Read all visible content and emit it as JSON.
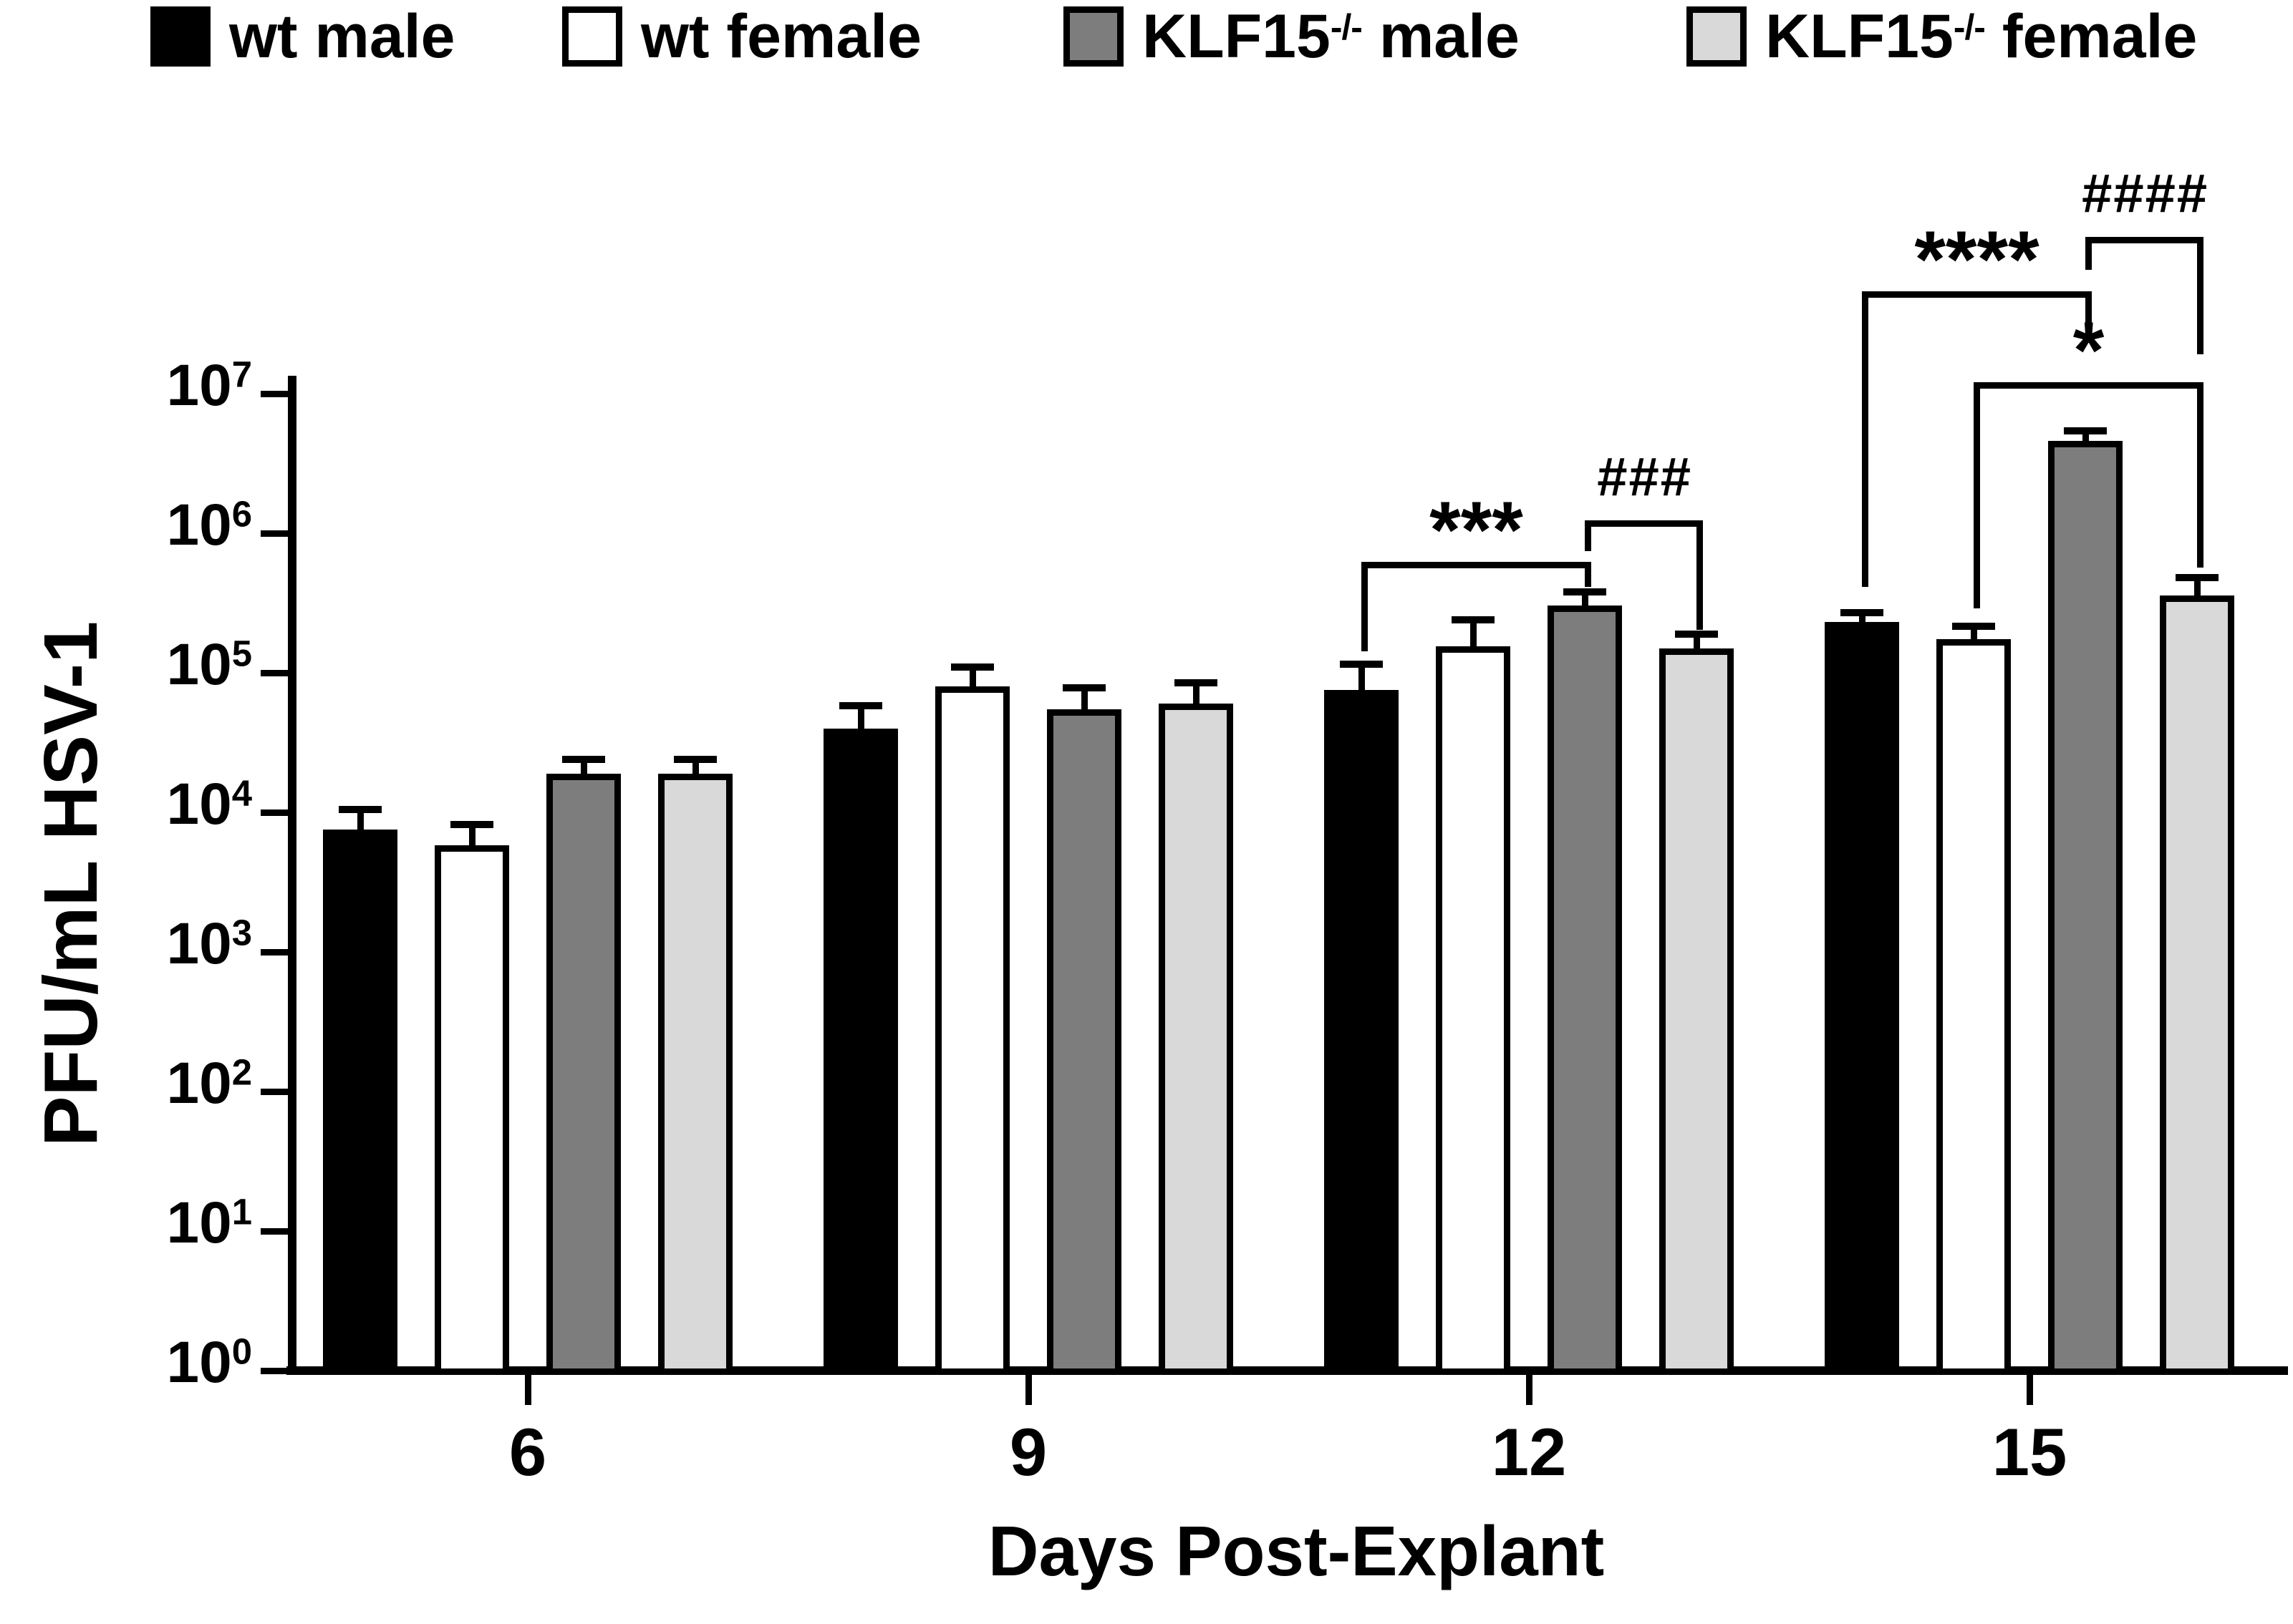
{
  "legend": {
    "items": [
      {
        "swatch": "#000000",
        "parts": [
          {
            "t": "wt male"
          }
        ]
      },
      {
        "swatch": "#ffffff",
        "parts": [
          {
            "t": "wt female"
          }
        ]
      },
      {
        "swatch": "#7d7d7d",
        "parts": [
          {
            "t": "KLF15"
          },
          {
            "t": "-/-",
            "sup": true
          },
          {
            "t": " male"
          }
        ]
      },
      {
        "swatch": "#d9d9d9",
        "parts": [
          {
            "t": "KLF15"
          },
          {
            "t": "-/-",
            "sup": true
          },
          {
            "t": " female"
          }
        ]
      }
    ]
  },
  "chart_data": {
    "type": "bar",
    "title": "",
    "xlabel": "Days Post-Explant",
    "ylabel": "PFU/mL HSV-1",
    "y_scale": "log10",
    "ylim": [
      1,
      10000000
    ],
    "y_tick_base": "10",
    "y_tick_exponents": [
      0,
      1,
      2,
      3,
      4,
      5,
      6,
      7
    ],
    "categories": [
      "6",
      "9",
      "12",
      "15"
    ],
    "series": [
      {
        "name": "wt male",
        "fill": "#000000",
        "values": [
          7500,
          40000,
          75000,
          230000
        ],
        "error_top": [
          10500,
          58000,
          115000,
          270000
        ]
      },
      {
        "name": "wt female",
        "fill": "#ffffff",
        "values": [
          5800,
          80000,
          155000,
          175000
        ],
        "error_top": [
          8200,
          110000,
          240000,
          215000
        ]
      },
      {
        "name": "KLF15-/- male",
        "fill": "#7d7d7d",
        "values": [
          19000,
          55000,
          305000,
          4600000
        ],
        "error_top": [
          24000,
          78000,
          380000,
          5400000
        ]
      },
      {
        "name": "KLF15-/- female",
        "fill": "#d9d9d9",
        "values": [
          19000,
          60000,
          150000,
          360000
        ],
        "error_top": [
          24000,
          85000,
          190000,
          480000
        ]
      }
    ],
    "annotations": [
      {
        "label": "***",
        "style": "ast",
        "day": "12",
        "from": 0,
        "to": 2,
        "y": 785,
        "leg_from": 910,
        "leg_to": 820
      },
      {
        "label": "###",
        "style": "hash",
        "day": "12",
        "from": 2,
        "to": 3,
        "y": 727,
        "leg_from": 770,
        "leg_to": 880
      },
      {
        "label": "****",
        "style": "ast",
        "day": "15",
        "from": 0,
        "to": 2,
        "y": 407,
        "leg_from": 820,
        "leg_to": 452
      },
      {
        "label": "####",
        "style": "hash",
        "day": "15",
        "from": 2,
        "to": 3,
        "y": 331,
        "leg_from": 377,
        "leg_to": 495
      },
      {
        "label": "*",
        "style": "ast",
        "day": "15",
        "from": 1,
        "to": 3,
        "y": 534,
        "leg_from": 850,
        "leg_to": 793
      }
    ],
    "legend_position": "top",
    "grid": false
  }
}
